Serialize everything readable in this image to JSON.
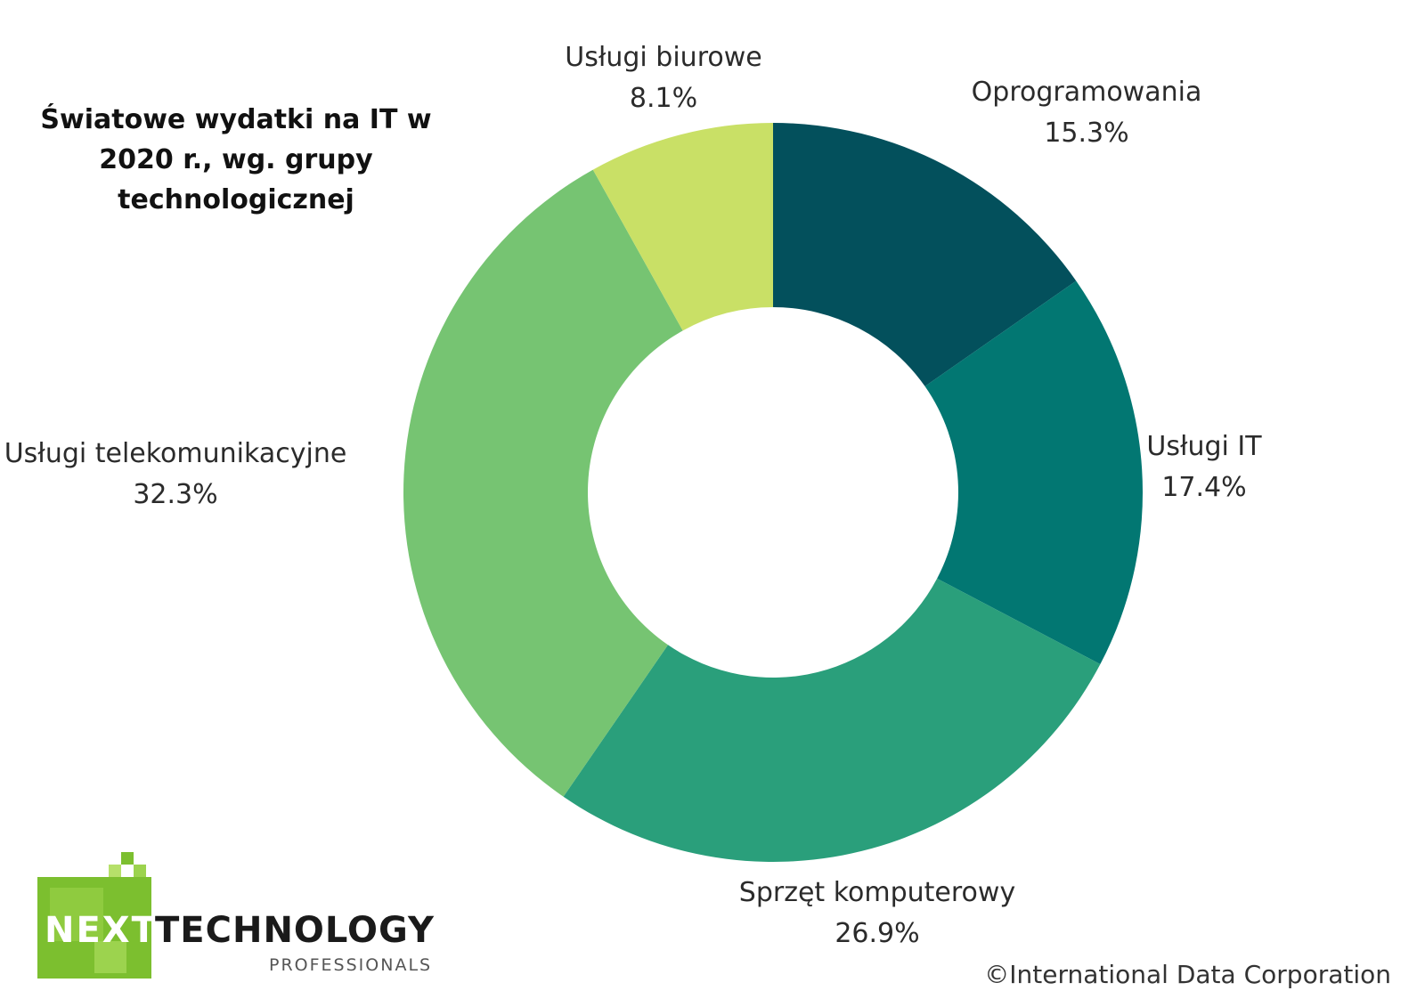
{
  "chart_data": {
    "type": "pie",
    "variant": "donut",
    "title": "Światowe wydatki na IT w\n2020 r., wg. grupy\ntechnologicznej",
    "slices": [
      {
        "label": "Oprogramowania",
        "value": 15.3,
        "value_label": "15.3%",
        "color": "#03505c"
      },
      {
        "label": "Usługi IT",
        "value": 17.4,
        "value_label": "17.4%",
        "color": "#027772"
      },
      {
        "label": "Sprzęt komputerowy",
        "value": 26.9,
        "value_label": "26.9%",
        "color": "#2a9f7b"
      },
      {
        "label": "Usługi telekomunikacyjne",
        "value": 32.3,
        "value_label": "32.3%",
        "color": "#76c472"
      },
      {
        "label": "Usługi biurowe",
        "value": 8.1,
        "value_label": "8.1%",
        "color": "#c9e066"
      }
    ],
    "start_angle": "12 o'clock",
    "direction": "clockwise",
    "legend": "none",
    "labels": "outside"
  },
  "logo": {
    "word1": "NEXT",
    "word2": "TECHNOLOGY",
    "sub": "PROFESSIONALS"
  },
  "credit": "©International Data Corporation"
}
